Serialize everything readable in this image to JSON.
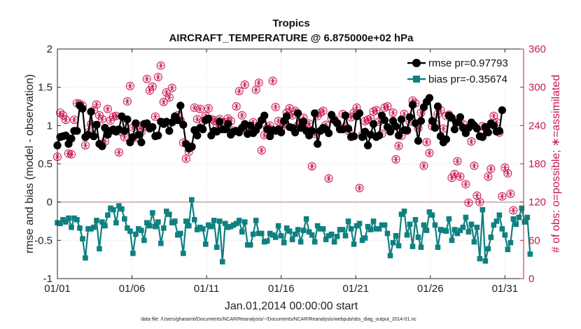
{
  "chart_data": {
    "type": "line",
    "title": "Tropics",
    "subtitle": "AIRCRAFT_TEMPERATURE @ 6.875000e+02 hPa",
    "xlabel": "Jan.01,2014 00:00:00 start",
    "ylabel": "rmse and bias (model - observation)",
    "y2label": "# of obs: o=possible; ∗=assimilated",
    "footer": "data file: /Users/gharamti/Documents/NCAR/Reanalysis/~/Documents/NCAR/Reanalysis/webpub/obs_diag_output_2014-01.nc",
    "xlim": [
      0,
      31.25
    ],
    "ylim": [
      -1,
      2
    ],
    "y2lim": [
      0,
      360
    ],
    "xticks": [
      0,
      5,
      10,
      15,
      20,
      25,
      30
    ],
    "xticklabels": [
      "01/01",
      "01/06",
      "01/11",
      "01/16",
      "01/21",
      "01/26",
      "01/31"
    ],
    "yticks": [
      -1,
      -0.5,
      0,
      0.5,
      1,
      1.5,
      2
    ],
    "yticklabels": [
      "-1",
      "-0.5",
      "0",
      "0.5",
      "1",
      "1.5",
      "2"
    ],
    "y2ticks": [
      0,
      60,
      120,
      180,
      240,
      300,
      360
    ],
    "y2ticklabels": [
      "0",
      "60",
      "120",
      "180",
      "240",
      "300",
      "360"
    ],
    "legend_position": "top-right",
    "series": [
      {
        "name": "rmse pr=0.97793",
        "color": "#000000",
        "marker": "circle",
        "axis": "left",
        "values": [
          0.74,
          0.85,
          0.86,
          0.87,
          0.76,
          0.83,
          0.93,
          0.93,
          1.26,
          1.22,
          0.85,
          0.88,
          1.18,
          0.86,
          1.01,
          0.76,
          0.73,
          0.97,
          0.88,
          0.93,
          0.95,
          0.92,
          0.95,
          1.12,
          0.93,
          1.08,
          0.78,
          0.85,
          1.03,
          0.88,
          0.78,
          1.02,
          1.03,
          0.96,
          0.98,
          0.86,
          0.87,
          1.05,
          1.02,
          1.05,
          0.93,
          1.04,
          1.12,
          1.07,
          1.26,
          1.01,
          0.76,
          0.7,
          0.72,
          0.94,
          0.87,
          0.97,
          0.95,
          1.07,
          1.09,
          0.87,
          0.93,
          0.92,
          1.05,
          0.95,
          0.95,
          1.02,
          0.88,
          0.92,
          0.93,
          0.91,
          0.97,
          1.02,
          0.89,
          1.0,
          0.9,
          0.94,
          1.0,
          1.07,
          1.13,
          0.95,
          0.86,
          0.94,
          0.93,
          0.95,
          0.91,
          1.06,
          1.12,
          0.98,
          0.97,
          0.91,
          1.16,
          0.97,
          1.05,
          0.93,
          0.87,
          0.93,
          1.16,
          0.76,
          0.93,
          0.97,
          0.95,
          0.9,
          1.14,
          1.07,
          1.03,
          0.95,
          0.95,
          1.13,
          0.96,
          0.85,
          0.86,
          1.12,
          1.16,
          0.85,
          0.92,
          0.74,
          0.88,
          1.02,
          0.85,
          0.87,
          1.13,
          1.07,
          0.98,
          0.92,
          1.06,
          0.99,
          0.87,
          1.08,
          0.94,
          0.94,
          1.11,
          1.27,
          1.03,
          0.8,
          1.06,
          1.24,
          1.31,
          1.36,
          1.06,
          0.97,
          1.25,
          0.86,
          0.78,
          0.82,
          1.13,
          1.1,
          0.95,
          1.04,
          1.11,
          0.97,
          0.9,
          0.97,
          1.04,
          1.0,
          0.96,
          0.86,
          0.85,
          0.98,
          0.91,
          1.03,
          1.0,
          0.92,
          0.93,
          1.2
        ]
      },
      {
        "name": "bias pr=-0.35674",
        "color": "#0f8080",
        "marker": "square",
        "axis": "left",
        "values": [
          -0.27,
          -0.28,
          -0.23,
          -0.26,
          -0.21,
          -0.33,
          -0.21,
          -0.23,
          -0.34,
          -0.48,
          -0.73,
          -0.35,
          -0.35,
          -0.33,
          -0.24,
          -0.61,
          -0.26,
          -0.31,
          -0.17,
          -0.08,
          -0.1,
          -0.27,
          -0.05,
          -0.09,
          -0.22,
          -0.34,
          -0.38,
          -0.67,
          -0.42,
          -0.35,
          -0.37,
          -0.5,
          -0.27,
          -0.31,
          -0.14,
          -0.32,
          -0.26,
          -0.54,
          -0.34,
          -0.12,
          -0.16,
          -0.27,
          -0.25,
          -0.43,
          -0.41,
          -0.67,
          -0.25,
          -0.31,
          0.03,
          -0.23,
          -0.36,
          -0.33,
          -0.35,
          -0.55,
          -0.3,
          -0.32,
          -0.24,
          -0.59,
          -0.25,
          -0.78,
          -0.28,
          -0.33,
          -0.32,
          -0.3,
          -0.28,
          -0.24,
          -0.39,
          -0.26,
          -0.56,
          -0.56,
          -0.42,
          -0.24,
          -0.41,
          -0.41,
          -0.52,
          -0.51,
          -0.41,
          -0.43,
          -0.46,
          -0.31,
          -0.44,
          -0.53,
          -0.34,
          -0.38,
          -0.49,
          -0.42,
          -0.36,
          -0.52,
          -0.37,
          -0.22,
          -0.39,
          -0.43,
          -0.52,
          -0.31,
          -0.35,
          -0.35,
          -0.49,
          -0.44,
          -0.42,
          -0.52,
          -0.45,
          -0.36,
          -0.36,
          -0.44,
          -0.25,
          -0.35,
          -0.55,
          -0.31,
          -0.28,
          -0.5,
          -0.47,
          -0.32,
          -0.36,
          -0.25,
          -0.35,
          -0.35,
          -0.3,
          -0.3,
          -0.41,
          -0.7,
          -0.53,
          -0.44,
          -0.57,
          -0.16,
          -0.12,
          -0.43,
          -0.29,
          -0.58,
          -0.23,
          -0.46,
          -0.59,
          -0.3,
          -0.37,
          -0.13,
          -0.17,
          -0.3,
          -0.59,
          -0.36,
          -0.37,
          -0.38,
          -0.22,
          -0.5,
          -0.36,
          -0.41,
          -0.37,
          -0.33,
          -0.2,
          -0.39,
          -0.29,
          -0.52,
          -0.33,
          -0.74,
          -0.1,
          -0.77,
          -0.61,
          -0.46,
          -0.3,
          -0.25,
          -0.17,
          -0.35,
          -0.43,
          -0.62,
          -0.53,
          -0.22,
          -0.29,
          -0.2,
          -0.08,
          -0.26,
          -0.2,
          -0.68
        ]
      },
      {
        "name": "obs possible",
        "color": "#c8174f",
        "marker": "open-circle",
        "axis": "right",
        "values": [
          191,
          260,
          256,
          249,
          196,
          195,
          249,
          275,
          274,
          271,
          209,
          229,
          242,
          264,
          273,
          256,
          250,
          215,
          266,
          248,
          254,
          255,
          198,
          230,
          222,
          278,
          302,
          237,
          221,
          240,
          230,
          239,
          313,
          295,
          301,
          254,
          316,
          334,
          277,
          292,
          284,
          299,
          251,
          256,
          248,
          213,
          188,
          199,
          207,
          268,
          250,
          266,
          247,
          255,
          267,
          250,
          248,
          241,
          250,
          245,
          245,
          251,
          247,
          232,
          270,
          294,
          256,
          304,
          230,
          232,
          245,
          296,
          307,
          201,
          225,
          236,
          240,
          310,
          269,
          247,
          236,
          243,
          260,
          267,
          256,
          263,
          240,
          244,
          252,
          237,
          243,
          176,
          227,
          255,
          260,
          263,
          241,
          157,
          251,
          250,
          244,
          237,
          258,
          238,
          232,
          253,
          260,
          268,
          142,
          225,
          247,
          249,
          251,
          262,
          264,
          246,
          227,
          268,
          270,
          232,
          260,
          187,
          208,
          224,
          258,
          232,
          246,
          279,
          275,
          236,
          260,
          177,
          214,
          197,
          239,
          243,
          258,
          264,
          235,
          255,
          257,
          158,
          164,
          184,
          160,
          242,
          148,
          119,
          215,
          177,
          130,
          120,
          239,
          236,
          160,
          172,
          255,
          245,
          229,
          129,
          174,
          165,
          133,
          107
        ]
      },
      {
        "name": "obs assimilated",
        "color": "#c8174f",
        "marker": "asterisk",
        "axis": "right",
        "values": [
          191,
          259,
          256,
          249,
          196,
          195,
          249,
          275,
          274,
          271,
          209,
          229,
          242,
          264,
          273,
          256,
          250,
          215,
          266,
          248,
          254,
          255,
          198,
          230,
          222,
          278,
          302,
          237,
          221,
          240,
          230,
          239,
          313,
          295,
          301,
          254,
          316,
          334,
          277,
          292,
          284,
          299,
          251,
          256,
          248,
          213,
          188,
          199,
          207,
          268,
          250,
          266,
          247,
          255,
          267,
          250,
          248,
          241,
          250,
          245,
          245,
          251,
          247,
          232,
          270,
          294,
          256,
          304,
          230,
          232,
          245,
          296,
          307,
          201,
          225,
          236,
          240,
          310,
          269,
          247,
          236,
          243,
          260,
          267,
          256,
          263,
          240,
          244,
          252,
          237,
          243,
          176,
          227,
          255,
          260,
          263,
          241,
          157,
          251,
          250,
          244,
          237,
          258,
          238,
          232,
          253,
          260,
          268,
          142,
          225,
          247,
          249,
          251,
          262,
          264,
          246,
          227,
          268,
          270,
          232,
          260,
          187,
          208,
          224,
          258,
          232,
          246,
          279,
          275,
          236,
          260,
          177,
          214,
          197,
          239,
          243,
          258,
          264,
          235,
          255,
          257,
          158,
          164,
          184,
          160,
          242,
          148,
          119,
          215,
          177,
          130,
          120,
          239,
          236,
          160,
          172,
          255,
          245,
          229,
          129,
          174,
          165,
          133,
          107
        ]
      }
    ]
  }
}
